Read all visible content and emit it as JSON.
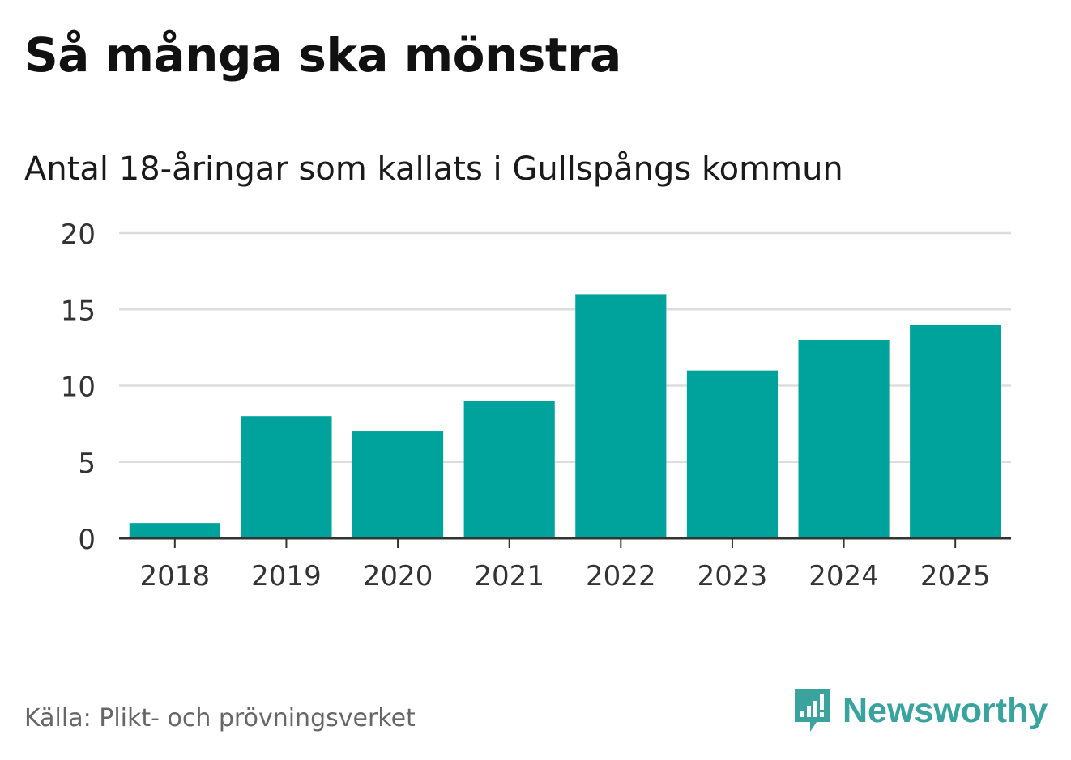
{
  "title": "Så många ska mönstra",
  "subtitle": "Antal 18-åringar som kallats i Gullspångs kommun",
  "source": "Källa: Plikt- och prövningsverket",
  "brand": {
    "name": "Newsworthy",
    "icon": "newsworthy-logo-icon",
    "color": "#3aa39e"
  },
  "colors": {
    "bar": "#00a39b",
    "grid": "#dddddd",
    "axis": "#333333",
    "text": "#333333"
  },
  "chart_data": {
    "type": "bar",
    "title": "Så många ska mönstra",
    "subtitle": "Antal 18-åringar som kallats i Gullspångs kommun",
    "categories": [
      "2018",
      "2019",
      "2020",
      "2021",
      "2022",
      "2023",
      "2024",
      "2025"
    ],
    "values": [
      1,
      8,
      7,
      9,
      16,
      11,
      13,
      14
    ],
    "yticks": [
      0,
      5,
      10,
      15,
      20
    ],
    "ylim": [
      0,
      20
    ],
    "xlabel": "",
    "ylabel": "",
    "grid": true,
    "legend": "none"
  }
}
